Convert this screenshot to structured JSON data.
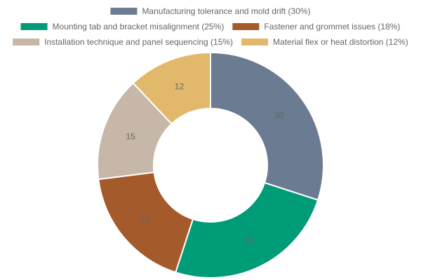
{
  "chart_data": {
    "type": "pie",
    "variant": "doughnut",
    "title": "",
    "legend_position": "top",
    "series": [
      {
        "categories": [
          "Manufacturing tolerance and mold drift (30%)",
          "Mounting tab and bracket misalignment (25%)",
          "Fastener and grommet issues (18%)",
          "Installation technique and panel sequencing (15%)",
          "Material flex or heat distortion (12%)"
        ],
        "values": [
          30,
          25,
          18,
          15,
          12
        ],
        "value_labels": [
          "30",
          "25",
          "18",
          "15",
          "12"
        ],
        "colors": [
          "#6b7b91",
          "#009b77",
          "#a55a2c",
          "#c6b7a8",
          "#e2b86b"
        ]
      }
    ]
  }
}
